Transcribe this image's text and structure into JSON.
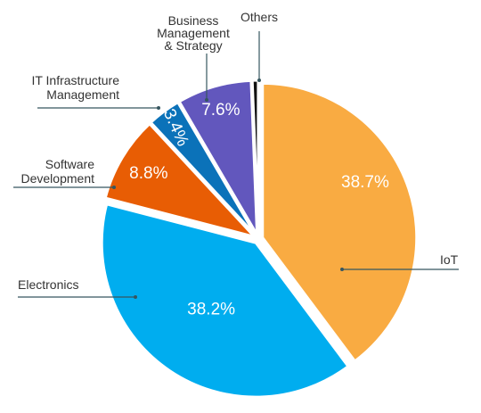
{
  "chart_data": {
    "type": "pie",
    "title": "",
    "slices": [
      {
        "label": "IoT",
        "value": 38.7,
        "value_label": "38.7%",
        "color": "#f9ab42"
      },
      {
        "label": "Electronics",
        "value": 38.2,
        "value_label": "38.2%",
        "color": "#00adef"
      },
      {
        "label": "Software\nDevelopment",
        "value": 8.8,
        "value_label": "8.8%",
        "color": "#e85d04"
      },
      {
        "label": "IT Infrastructure\nManagement",
        "value": 3.4,
        "value_label": "3.4%",
        "color": "#0b72b9"
      },
      {
        "label": "Business\nManagement\n& Strategy",
        "value": 7.6,
        "value_label": "7.6%",
        "color": "#6257bd"
      },
      {
        "label": "Others",
        "value": 0.6,
        "value_label": "",
        "color": "#111111"
      }
    ],
    "start_angle": "top",
    "direction": "clockwise",
    "exploded": true
  }
}
